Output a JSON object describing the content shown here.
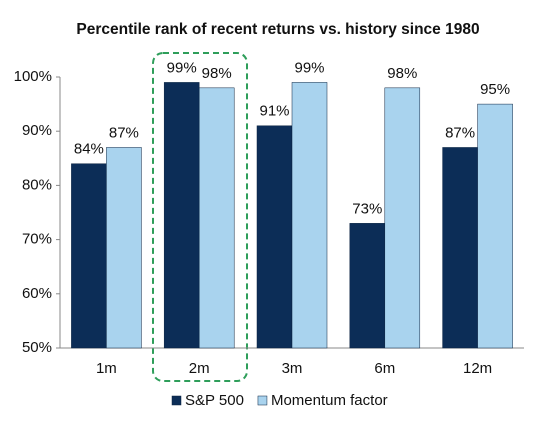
{
  "chart_data": {
    "type": "bar",
    "title": "Percentile  rank of recent returns vs. history since 1980",
    "categories": [
      "1m",
      "2m",
      "3m",
      "6m",
      "12m"
    ],
    "series": [
      {
        "name": "S&P 500",
        "color": "#0c2d57",
        "values": [
          84,
          99,
          91,
          73,
          87
        ],
        "value_labels": [
          "84%",
          "99%",
          "91%",
          "73%",
          "87%"
        ]
      },
      {
        "name": "Momentum factor",
        "color": "#a9d3ee",
        "values": [
          87,
          98,
          99,
          98,
          95
        ],
        "value_labels": [
          "87%",
          "98%",
          "99%",
          "98%",
          "95%"
        ]
      }
    ],
    "ylim": [
      50,
      100
    ],
    "yticks": [
      {
        "value": 50,
        "label": "50%"
      },
      {
        "value": 60,
        "label": "60%"
      },
      {
        "value": 70,
        "label": "70%"
      },
      {
        "value": 80,
        "label": "80%"
      },
      {
        "value": 90,
        "label": "90%"
      },
      {
        "value": 100,
        "label": "100%"
      }
    ],
    "grid": false,
    "legend": "bottom"
  }
}
